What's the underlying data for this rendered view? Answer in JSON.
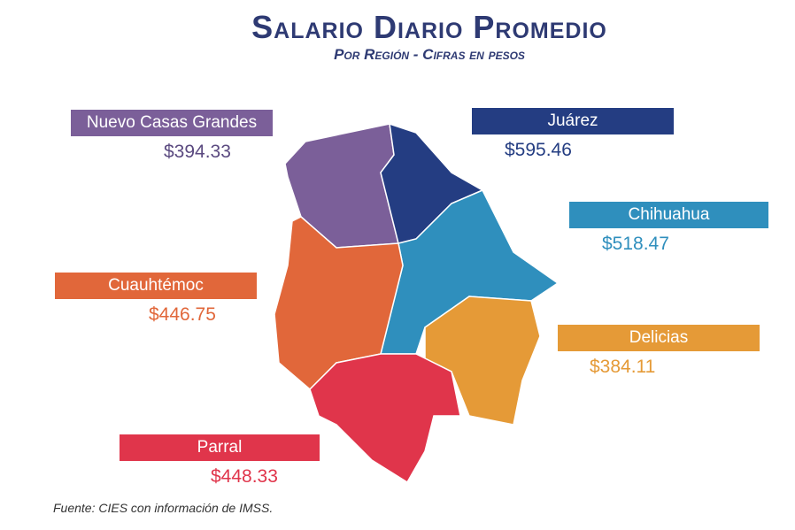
{
  "header": {
    "title": "Salario Diario Promedio",
    "subtitle": "Por Región - Cifras en pesos"
  },
  "regions": [
    {
      "name": "Nuevo Casas Grandes",
      "value": "$394.33"
    },
    {
      "name": "Juárez",
      "value": "$595.46"
    },
    {
      "name": "Chihuahua",
      "value": "$518.47"
    },
    {
      "name": "Cuauhtémoc",
      "value": "$446.75"
    },
    {
      "name": "Delicias",
      "value": "$384.11"
    },
    {
      "name": "Parral",
      "value": "$448.33"
    }
  ],
  "source": "Fuente: CIES con información de IMSS."
}
